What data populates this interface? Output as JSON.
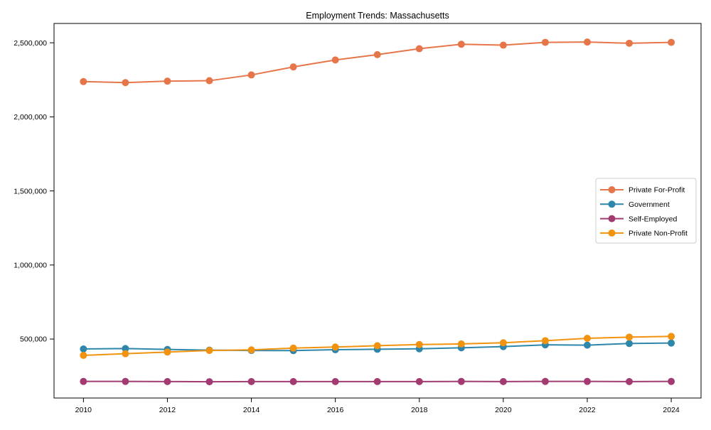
{
  "title": "Employment Trends: Massachusetts",
  "chart_data": {
    "type": "line",
    "title": "Employment Trends: Massachusetts",
    "xlabel": "",
    "ylabel": "",
    "x": [
      2010,
      2011,
      2012,
      2013,
      2014,
      2015,
      2016,
      2017,
      2018,
      2019,
      2020,
      2021,
      2022,
      2023,
      2024
    ],
    "series": [
      {
        "name": "Private For-Profit",
        "color": "#e6764a",
        "values": [
          2238000,
          2231000,
          2241000,
          2244000,
          2283000,
          2337000,
          2384000,
          2420000,
          2460000,
          2490000,
          2484000,
          2503000,
          2505000,
          2497000,
          2503000
        ]
      },
      {
        "name": "Government",
        "color": "#2e86ab",
        "values": [
          433000,
          436000,
          430000,
          425000,
          423000,
          422000,
          428000,
          431000,
          434000,
          441000,
          449000,
          461000,
          459000,
          470000,
          473000
        ]
      },
      {
        "name": "Self-Employed",
        "color": "#a23b72",
        "values": [
          214000,
          214000,
          213000,
          212000,
          213000,
          213000,
          213000,
          213000,
          213000,
          214000,
          213000,
          214000,
          214000,
          213000,
          214000
        ]
      },
      {
        "name": "Private Non-Profit",
        "color": "#f1930e",
        "values": [
          390000,
          401000,
          412000,
          423000,
          427000,
          439000,
          446000,
          455000,
          463000,
          467000,
          475000,
          489000,
          505000,
          513000,
          518000
        ]
      }
    ],
    "xticks": [
      2010,
      2012,
      2014,
      2016,
      2018,
      2020,
      2022,
      2024
    ],
    "yticks": [
      500000,
      1000000,
      1500000,
      2000000,
      2500000
    ],
    "ytick_labels": [
      "500,000",
      "1,000,000",
      "1,500,000",
      "2,000,000",
      "2,500,000"
    ],
    "xlim": [
      2009.3,
      2024.71
    ],
    "ylim": [
      102000,
      2630500
    ],
    "grid": false,
    "legend_position": "center right",
    "marker": "circle"
  }
}
